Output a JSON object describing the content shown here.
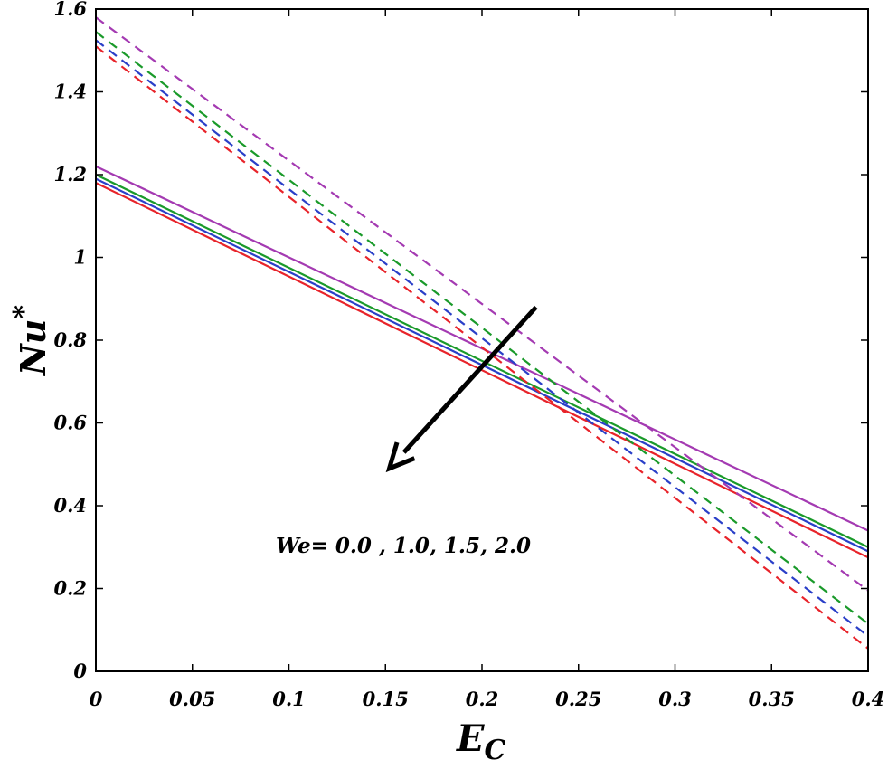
{
  "chart_data": {
    "type": "line",
    "title": "",
    "xlabel": "E",
    "xlabel_sub": "C",
    "ylabel": "Nu",
    "ylabel_sup": "*",
    "xlim": [
      0,
      0.4
    ],
    "ylim": [
      0,
      1.6
    ],
    "xticks": [
      "0",
      "0.05",
      "0.1",
      "0.15",
      "0.2",
      "0.25",
      "0.3",
      "0.35",
      "0.4"
    ],
    "yticks": [
      "0",
      "0.2",
      "0.4",
      "0.6",
      "0.8",
      "1",
      "1.2",
      "1.4",
      "1.6"
    ],
    "grid": false,
    "x": [
      0,
      0.4
    ],
    "series": [
      {
        "name": "We=0.0 solid",
        "color": "#e8232a",
        "dash": "solid",
        "values": [
          1.18,
          0.275
        ]
      },
      {
        "name": "We=1.0 solid",
        "color": "#2a3fc8",
        "dash": "solid",
        "values": [
          1.19,
          0.29
        ]
      },
      {
        "name": "We=1.5 solid",
        "color": "#1a9a2a",
        "dash": "solid",
        "values": [
          1.2,
          0.3
        ]
      },
      {
        "name": "We=2.0 solid",
        "color": "#a43ab2",
        "dash": "solid",
        "values": [
          1.22,
          0.34
        ]
      },
      {
        "name": "We=0.0 dashed",
        "color": "#e8232a",
        "dash": "dashed",
        "values": [
          1.51,
          0.055
        ]
      },
      {
        "name": "We=1.0 dashed",
        "color": "#2a3fc8",
        "dash": "dashed",
        "values": [
          1.525,
          0.085
        ]
      },
      {
        "name": "We=1.5 dashed",
        "color": "#1a9a2a",
        "dash": "dashed",
        "values": [
          1.545,
          0.115
        ]
      },
      {
        "name": "We=2.0 dashed",
        "color": "#a43ab2",
        "dash": "dashed",
        "values": [
          1.58,
          0.195
        ]
      }
    ],
    "annotation": {
      "text": "We= 0.0 , 1.0, 1.5, 2.0",
      "arrow_from": [
        0.228,
        0.88
      ],
      "arrow_to": [
        0.152,
        0.49
      ]
    }
  }
}
